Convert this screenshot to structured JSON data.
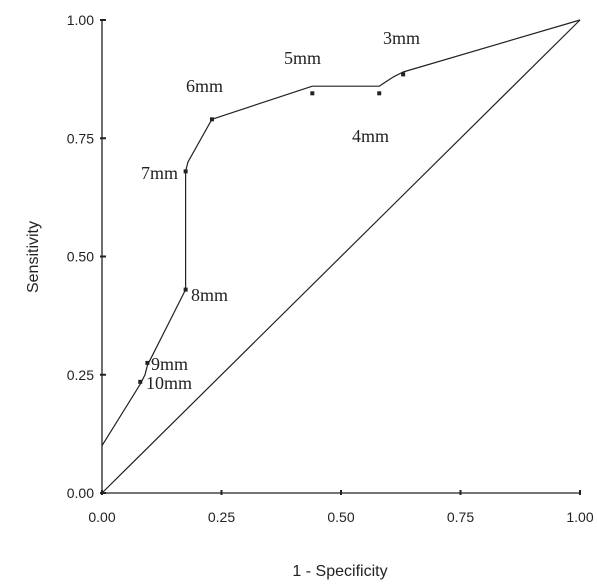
{
  "chart_data": {
    "type": "line",
    "xlabel": "1 - Specificity",
    "ylabel": "Sensitivity",
    "xlim": [
      0,
      1
    ],
    "ylim": [
      0,
      1
    ],
    "x_ticks": [
      "0.00",
      "0.25",
      "0.50",
      "0.75",
      "1.00"
    ],
    "y_ticks": [
      "0.00",
      "0.25",
      "0.50",
      "0.75",
      "1.00"
    ],
    "grid": false,
    "legend": "none",
    "series": [
      {
        "type": "line",
        "x": [
          0.0,
          0.08,
          0.09,
          0.095,
          0.175,
          0.175,
          0.18,
          0.23,
          0.44,
          0.58,
          0.61,
          0.63,
          1.0
        ],
        "y": [
          0.1,
          0.23,
          0.25,
          0.27,
          0.43,
          0.68,
          0.7,
          0.79,
          0.86,
          0.86,
          0.88,
          0.89,
          1.0
        ]
      },
      {
        "type": "line",
        "x": [
          0,
          1
        ],
        "y": [
          0,
          1
        ]
      }
    ],
    "points": [
      {
        "label": "10mm",
        "x": 0.08,
        "y": 0.235
      },
      {
        "label": "9mm",
        "x": 0.095,
        "y": 0.275
      },
      {
        "label": "8mm",
        "x": 0.175,
        "y": 0.43
      },
      {
        "label": "7mm",
        "x": 0.175,
        "y": 0.68
      },
      {
        "label": "6mm",
        "x": 0.23,
        "y": 0.79
      },
      {
        "label": "5mm",
        "x": 0.44,
        "y": 0.845
      },
      {
        "label": "4mm",
        "x": 0.58,
        "y": 0.845
      },
      {
        "label": "3mm",
        "x": 0.63,
        "y": 0.885
      }
    ]
  },
  "colors": {
    "ink": "#222222",
    "background": "#ffffff"
  }
}
